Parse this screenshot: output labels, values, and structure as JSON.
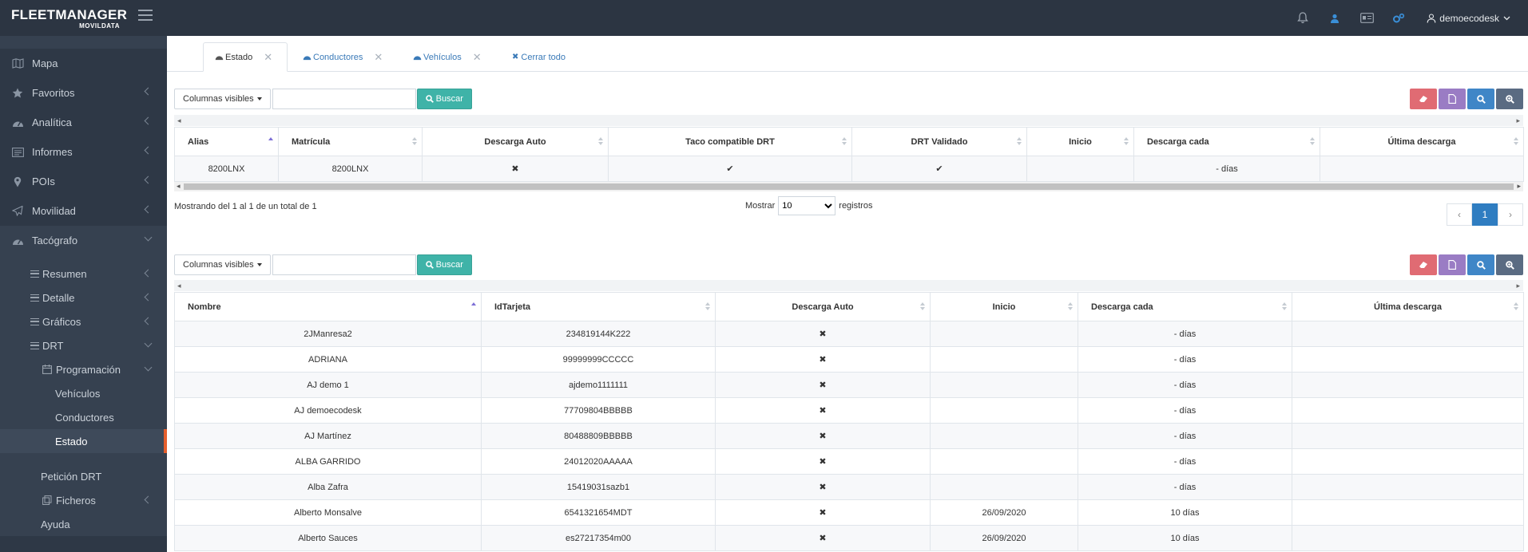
{
  "app": {
    "logo_main": "FLEETMANAGER",
    "logo_sub": "MOVILDATA",
    "username": "demoecodesk"
  },
  "topbar": {
    "icons": [
      "bell-icon",
      "user-icon",
      "id-card-icon",
      "cogs-icon"
    ]
  },
  "sidebar": {
    "items": [
      {
        "label": "Mapa",
        "icon": "map-icon"
      },
      {
        "label": "Favoritos",
        "icon": "star-icon"
      },
      {
        "label": "Analítica",
        "icon": "dashboard-icon"
      },
      {
        "label": "Informes",
        "icon": "report-icon"
      },
      {
        "label": "POIs",
        "icon": "pin-icon"
      },
      {
        "label": "Movilidad",
        "icon": "paper-plane-icon"
      },
      {
        "label": "Tacógrafo",
        "icon": "dashboard-icon"
      }
    ],
    "tacografo_sub": {
      "resumen": "Resumen",
      "detalle": "Detalle",
      "graficos": "Gráficos",
      "drt": "DRT",
      "programacion": "Programación",
      "vehiculos": "Vehículos",
      "conductores": "Conductores",
      "estado": "Estado",
      "peticion": "Petición DRT",
      "ficheros": "Ficheros",
      "ayuda": "Ayuda"
    }
  },
  "tabs": [
    {
      "label": "Estado",
      "icon": "dashboard-icon",
      "active": true
    },
    {
      "label": "Conductores",
      "icon": "dashboard-icon",
      "active": false
    },
    {
      "label": "Vehículos",
      "icon": "dashboard-icon",
      "active": false
    },
    {
      "label": "Cerrar todo",
      "icon": "close-icon",
      "active": false
    }
  ],
  "toolbar": {
    "columns_label": "Columnas visibles",
    "search_label": "Buscar",
    "search_value": ""
  },
  "table1": {
    "headers": [
      "Alias",
      "Matrícula",
      "Descarga Auto",
      "Taco compatible DRT",
      "DRT Validado",
      "Inicio",
      "Descarga cada",
      "Última descarga"
    ],
    "rows": [
      [
        "8200LNX",
        "8200LNX",
        "✖",
        "✔",
        "✔",
        "",
        "- días",
        ""
      ]
    ],
    "info": "Mostrando del 1 al 1 de un total de 1",
    "length_pre": "Mostrar",
    "length_value": "10",
    "length_post": "registros",
    "page": "1",
    "prev": "‹",
    "next": "›"
  },
  "table2": {
    "headers": [
      "Nombre",
      "IdTarjeta",
      "Descarga Auto",
      "Inicio",
      "Descarga cada",
      "Última descarga"
    ],
    "rows": [
      [
        "2JManresa2",
        "234819144K222",
        "✖",
        "",
        "- días",
        ""
      ],
      [
        "ADRIANA",
        "99999999CCCCC",
        "✖",
        "",
        "- días",
        ""
      ],
      [
        "AJ demo 1",
        "ajdemo1111111",
        "✖",
        "",
        "- días",
        ""
      ],
      [
        "AJ demoecodesk",
        "77709804BBBBB",
        "✖",
        "",
        "- días",
        ""
      ],
      [
        "AJ Martínez",
        "80488809BBBBB",
        "✖",
        "",
        "- días",
        ""
      ],
      [
        "ALBA GARRIDO",
        "24012020AAAAA",
        "✖",
        "",
        "- días",
        ""
      ],
      [
        "Alba Zafra",
        "15419031sazb1",
        "✖",
        "",
        "- días",
        ""
      ],
      [
        "Alberto Monsalve",
        "6541321654MDT",
        "✖",
        "26/09/2020",
        "10 días",
        ""
      ],
      [
        "Alberto Sauces",
        "es27217354m00",
        "✖",
        "26/09/2020",
        "10 días",
        ""
      ]
    ]
  }
}
